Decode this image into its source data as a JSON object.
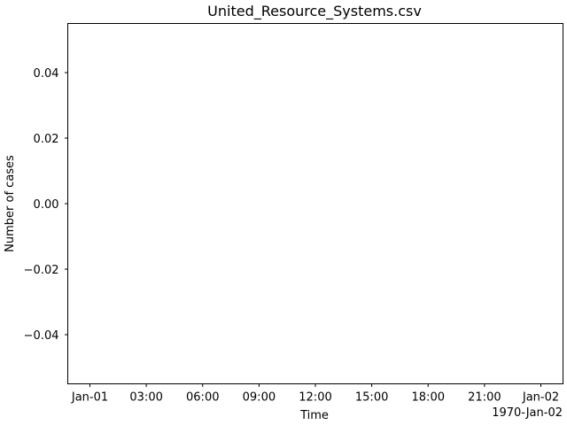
{
  "chart_data": {
    "type": "line",
    "title": "United_Resource_Systems.csv",
    "xlabel": "Time",
    "ylabel": "Number of cases",
    "x_tick_labels": [
      "Jan-01",
      "03:00",
      "06:00",
      "09:00",
      "12:00",
      "15:00",
      "18:00",
      "21:00",
      "Jan-02"
    ],
    "x_offset_label": "1970-Jan-02",
    "y_tick_labels": [
      "0.04",
      "0.02",
      "0.00",
      "−0.02",
      "−0.04"
    ],
    "y_tick_values": [
      0.04,
      0.02,
      0.0,
      -0.02,
      -0.04
    ],
    "ylim": [
      -0.055,
      0.055
    ],
    "xlim": [
      "1970-01-01T00:00",
      "1970-01-02T00:00"
    ],
    "series": [],
    "grid": false,
    "legend": "none"
  }
}
